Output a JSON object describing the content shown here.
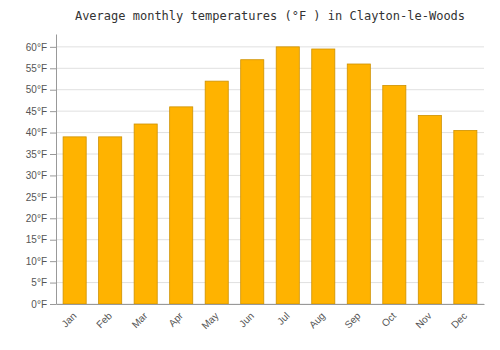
{
  "chart_data": {
    "type": "bar",
    "title": "Average monthly temperatures (°F ) in Clayton-le-Woods",
    "categories": [
      "Jan",
      "Feb",
      "Mar",
      "Apr",
      "May",
      "Jun",
      "Jul",
      "Aug",
      "Sep",
      "Oct",
      "Nov",
      "Dec"
    ],
    "values": [
      39,
      39,
      42,
      46,
      52,
      57,
      60,
      59.5,
      56,
      51,
      44,
      40.5
    ],
    "color": "#FFB300",
    "ylim": [
      0,
      63
    ],
    "yticks": [
      {
        "value": 0,
        "label": "0°F"
      },
      {
        "value": 5,
        "label": "5°F"
      },
      {
        "value": 10,
        "label": "10°F"
      },
      {
        "value": 15,
        "label": "15°F"
      },
      {
        "value": 20,
        "label": "20°F"
      },
      {
        "value": 25,
        "label": "25°F"
      },
      {
        "value": 30,
        "label": "30°F"
      },
      {
        "value": 35,
        "label": "35°F"
      },
      {
        "value": 40,
        "label": "40°F"
      },
      {
        "value": 45,
        "label": "45°F"
      },
      {
        "value": 50,
        "label": "50°F"
      },
      {
        "value": 55,
        "label": "55°F"
      },
      {
        "value": 60,
        "label": "60°F"
      }
    ],
    "grid": true
  }
}
